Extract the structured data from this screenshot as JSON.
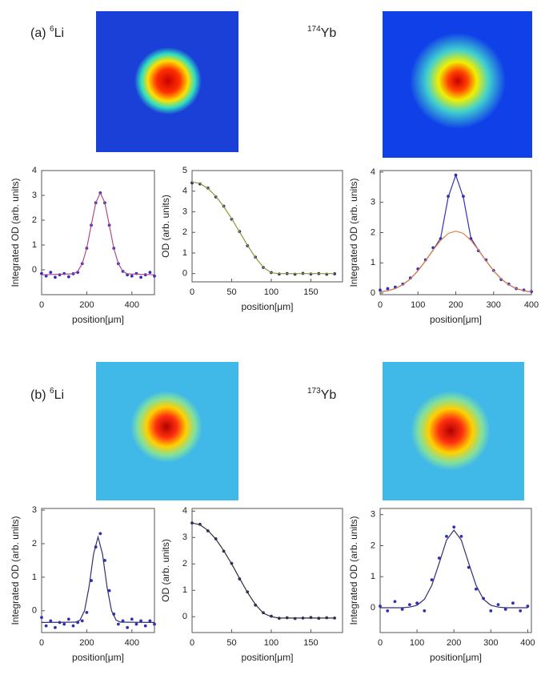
{
  "labels": [
    {
      "prefix": "(a)",
      "li_mass": "6",
      "li": "Li",
      "yb_mass": "174",
      "yb": "Yb"
    },
    {
      "prefix": "(b)",
      "li_mass": "6",
      "li": "Li",
      "yb_mass": "173",
      "yb": "Yb"
    }
  ],
  "chart_data": [
    {
      "type": "line",
      "xlabel": "position[μm]",
      "ylabel": "Integrated OD (arb. units)",
      "xlim": [
        0,
        500
      ],
      "ylim": [
        -1,
        4
      ],
      "xticks": [
        0,
        200,
        400
      ],
      "yticks": [
        0,
        1,
        2,
        3,
        4
      ],
      "series": [
        {
          "mode": "points",
          "color": "#2f2fb8",
          "x": [
            0,
            20,
            40,
            60,
            80,
            100,
            120,
            140,
            160,
            180,
            200,
            220,
            240,
            260,
            280,
            300,
            320,
            340,
            360,
            380,
            400,
            420,
            440,
            460,
            480,
            500
          ],
          "values": [
            -0.15,
            -0.25,
            -0.1,
            -0.3,
            -0.2,
            -0.15,
            -0.28,
            -0.16,
            -0.1,
            0.25,
            0.87,
            1.8,
            2.7,
            3.1,
            2.7,
            1.8,
            0.87,
            0.25,
            -0.06,
            -0.2,
            -0.25,
            -0.15,
            -0.3,
            -0.2,
            -0.1,
            -0.25
          ]
        },
        {
          "mode": "line",
          "color": "#b04a8a",
          "x": [
            0,
            140,
            160,
            180,
            200,
            220,
            240,
            260,
            280,
            300,
            320,
            340,
            360,
            380,
            500
          ],
          "values": [
            -0.2,
            -0.16,
            -0.06,
            0.25,
            0.87,
            1.8,
            2.7,
            3.1,
            2.7,
            1.8,
            0.87,
            0.25,
            -0.06,
            -0.16,
            -0.2
          ]
        }
      ]
    },
    {
      "type": "line",
      "xlabel": "position[μm]",
      "ylabel": "OD (arb. units)",
      "xlim": [
        0,
        190
      ],
      "ylim": [
        -0.4,
        5
      ],
      "xticks": [
        0,
        50,
        100,
        150
      ],
      "yticks": [
        0,
        1,
        2,
        3,
        4,
        5
      ],
      "series": [
        {
          "mode": "points",
          "color": "#303070",
          "x": [
            0,
            10,
            20,
            30,
            40,
            50,
            60,
            70,
            80,
            90,
            100,
            110,
            120,
            130,
            140,
            150,
            160,
            170,
            180
          ],
          "values": [
            4.4,
            4.35,
            4.15,
            3.72,
            3.27,
            2.64,
            2.04,
            1.35,
            0.8,
            0.3,
            0.05,
            -0.02,
            0,
            -0.03,
            0.01,
            -0.02,
            0,
            -0.03,
            -0.01
          ]
        },
        {
          "mode": "line",
          "color": "#8a9a3a",
          "x": [
            0,
            10,
            20,
            30,
            40,
            50,
            60,
            70,
            80,
            90,
            100,
            110,
            180
          ],
          "values": [
            4.45,
            4.37,
            4.13,
            3.75,
            3.25,
            2.66,
            2.02,
            1.37,
            0.78,
            0.31,
            0.04,
            0,
            0
          ]
        }
      ]
    },
    {
      "type": "line",
      "xlabel": "position[μm]",
      "ylabel": "Integrated OD (arb. units)",
      "xlim": [
        0,
        400
      ],
      "ylim": [
        -0.05,
        4.05
      ],
      "xticks": [
        0,
        100,
        200,
        300,
        400
      ],
      "yticks": [
        0,
        1,
        2,
        3,
        4
      ],
      "series": [
        {
          "mode": "points",
          "color": "#2f2fb8",
          "x": [
            0,
            20,
            40,
            60,
            80,
            100,
            120,
            140,
            160,
            180,
            200,
            220,
            240,
            260,
            280,
            300,
            320,
            340,
            360,
            380,
            400
          ],
          "values": [
            0.1,
            0.15,
            0.2,
            0.3,
            0.5,
            0.8,
            1.1,
            1.5,
            1.8,
            3.2,
            3.9,
            3.2,
            1.8,
            1.4,
            1.1,
            0.75,
            0.45,
            0.3,
            0.15,
            0.1,
            0.05
          ]
        },
        {
          "mode": "line",
          "color": "#2f2fb8",
          "x": [
            0,
            20,
            40,
            60,
            80,
            100,
            120,
            140,
            160,
            180,
            200,
            220,
            240,
            260,
            280,
            300,
            320,
            340,
            360,
            380,
            400
          ],
          "values": [
            0.04,
            0.08,
            0.15,
            0.28,
            0.47,
            0.74,
            1.07,
            1.42,
            1.82,
            3.16,
            3.9,
            3.16,
            1.82,
            1.42,
            1.07,
            0.74,
            0.47,
            0.28,
            0.15,
            0.08,
            0.04
          ]
        },
        {
          "mode": "line",
          "color": "#e08040",
          "x": [
            0,
            20,
            40,
            60,
            80,
            100,
            120,
            140,
            160,
            180,
            200,
            220,
            240,
            260,
            280,
            300,
            320,
            340,
            360,
            380,
            400
          ],
          "values": [
            0.04,
            0.08,
            0.15,
            0.28,
            0.47,
            0.74,
            1.07,
            1.42,
            1.74,
            1.97,
            2.05,
            1.97,
            1.74,
            1.42,
            1.07,
            0.74,
            0.47,
            0.28,
            0.15,
            0.08,
            0.04
          ]
        }
      ]
    },
    {
      "type": "line",
      "xlabel": "position[μm]",
      "ylabel": "Integrated OD (arb. units)",
      "xlim": [
        0,
        500
      ],
      "ylim": [
        -0.65,
        3.05
      ],
      "xticks": [
        0,
        200,
        400
      ],
      "yticks": [
        0,
        1,
        2,
        3
      ],
      "series": [
        {
          "mode": "points",
          "color": "#2f2fb8",
          "x": [
            0,
            20,
            40,
            60,
            80,
            100,
            120,
            140,
            160,
            180,
            200,
            220,
            240,
            260,
            280,
            300,
            320,
            340,
            360,
            380,
            400,
            420,
            440,
            460,
            480,
            500
          ],
          "values": [
            -0.2,
            -0.45,
            -0.3,
            -0.5,
            -0.35,
            -0.4,
            -0.25,
            -0.45,
            -0.35,
            -0.3,
            -0.05,
            0.9,
            1.9,
            2.3,
            1.5,
            0.6,
            -0.1,
            -0.4,
            -0.3,
            -0.5,
            -0.25,
            -0.4,
            -0.3,
            -0.45,
            -0.3,
            -0.4
          ]
        },
        {
          "mode": "line",
          "color": "#303070",
          "x": [
            0,
            150,
            170,
            190,
            210,
            230,
            250,
            270,
            290,
            310,
            330,
            350,
            500
          ],
          "values": [
            -0.35,
            -0.34,
            -0.28,
            0,
            0.7,
            1.69,
            2.2,
            1.69,
            0.7,
            0,
            -0.28,
            -0.34,
            -0.35
          ]
        }
      ]
    },
    {
      "type": "line",
      "xlabel": "position[μm]",
      "ylabel": "OD (arb. units)",
      "xlim": [
        0,
        190
      ],
      "ylim": [
        -0.6,
        4.1
      ],
      "xticks": [
        0,
        50,
        100,
        150
      ],
      "yticks": [
        0,
        1,
        2,
        3,
        4
      ],
      "series": [
        {
          "mode": "points",
          "color": "#303070",
          "x": [
            0,
            10,
            20,
            30,
            40,
            50,
            60,
            70,
            80,
            90,
            100,
            110,
            120,
            130,
            140,
            150,
            160,
            170,
            180
          ],
          "values": [
            3.55,
            3.5,
            3.25,
            2.95,
            2.48,
            2.02,
            1.43,
            0.94,
            0.44,
            0.15,
            0.02,
            -0.06,
            -0.04,
            -0.07,
            -0.05,
            -0.03,
            -0.06,
            -0.04,
            -0.05
          ]
        },
        {
          "mode": "line",
          "color": "#303030",
          "x": [
            0,
            10,
            20,
            30,
            40,
            50,
            60,
            70,
            80,
            90,
            100,
            110,
            180
          ],
          "values": [
            3.55,
            3.48,
            3.27,
            2.94,
            2.5,
            2.0,
            1.45,
            0.92,
            0.46,
            0.13,
            0,
            -0.05,
            -0.05
          ]
        }
      ]
    },
    {
      "type": "line",
      "xlabel": "position[μm]",
      "ylabel": "Integrated OD (arb. units)",
      "xlim": [
        0,
        410
      ],
      "ylim": [
        -0.8,
        3.2
      ],
      "xticks": [
        0,
        100,
        200,
        300,
        400
      ],
      "yticks": [
        0,
        1,
        2,
        3
      ],
      "series": [
        {
          "mode": "points",
          "color": "#2f2fb8",
          "x": [
            0,
            20,
            40,
            60,
            80,
            100,
            120,
            140,
            160,
            180,
            200,
            220,
            240,
            260,
            280,
            300,
            320,
            340,
            360,
            380,
            400
          ],
          "values": [
            0.05,
            -0.1,
            0.2,
            -0.05,
            0.1,
            0.15,
            -0.1,
            0.9,
            1.6,
            2.3,
            2.6,
            2.3,
            1.3,
            0.6,
            0.3,
            -0.1,
            0.1,
            -0.05,
            0.15,
            -0.1,
            0.05
          ]
        },
        {
          "mode": "line",
          "color": "#303070",
          "x": [
            0,
            60,
            80,
            100,
            120,
            140,
            160,
            180,
            200,
            220,
            240,
            260,
            280,
            300,
            320,
            340,
            400
          ],
          "values": [
            0,
            0,
            0.02,
            0.08,
            0.27,
            0.72,
            1.44,
            2.18,
            2.5,
            2.18,
            1.44,
            0.72,
            0.27,
            0.08,
            0.02,
            0,
            0
          ]
        }
      ]
    }
  ]
}
